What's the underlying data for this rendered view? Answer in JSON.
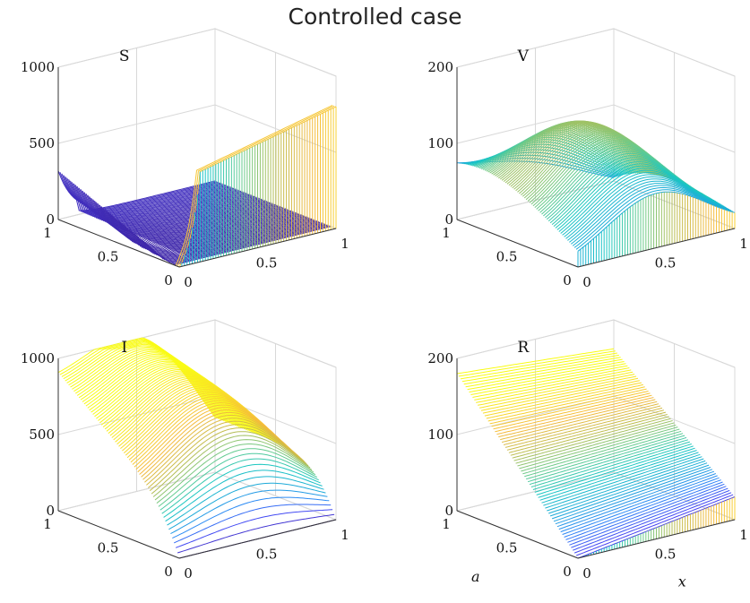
{
  "figure": {
    "title": "Controlled case"
  },
  "colormap": [
    "#3e26a8",
    "#4743f2",
    "#2e87f7",
    "#1cacd8",
    "#1ac7c2",
    "#6acb8c",
    "#c0bc4d",
    "#f5ba3c",
    "#f9dd2a",
    "#f9fb15"
  ],
  "chart_data": [
    {
      "type": "surface",
      "title": "S",
      "xlabel": "",
      "ylabel": "",
      "zlim": [
        0,
        1000
      ],
      "ztick_labels": [
        "0",
        "500",
        "1000"
      ],
      "a_tick_labels": [
        "0",
        "0.5",
        "1"
      ],
      "x_tick_labels": [
        "0",
        "0.5",
        "1"
      ],
      "boundary": {
        "a0_profile": [
          0,
          40,
          90,
          150,
          210,
          270,
          320,
          370,
          410,
          450,
          480,
          510,
          530,
          545,
          560,
          570,
          580,
          590,
          600,
          620,
          650
        ],
        "x0_profile": [
          0,
          0,
          0,
          0,
          0,
          0,
          0,
          0,
          0,
          0,
          0
        ]
      }
    },
    {
      "type": "surface",
      "title": "V",
      "xlabel": "",
      "ylabel": "",
      "zlim": [
        0,
        200
      ],
      "ztick_labels": [
        "0",
        "100",
        "200"
      ],
      "a_tick_labels": [
        "0",
        "0.5",
        "1"
      ],
      "x_tick_labels": [
        "0",
        "0.5",
        "1"
      ],
      "peak": 150
    },
    {
      "type": "surface",
      "title": "I",
      "xlabel": "",
      "ylabel": "",
      "zlim": [
        0,
        1000
      ],
      "ztick_labels": [
        "0",
        "500",
        "1000"
      ],
      "a_tick_labels": [
        "0",
        "0.5",
        "1"
      ],
      "x_tick_labels": [
        "0",
        "0.5",
        "1"
      ],
      "peak": 1000
    },
    {
      "type": "surface",
      "title": "R",
      "xlabel": "x",
      "ylabel": "a",
      "zlim": [
        0,
        200
      ],
      "ztick_labels": [
        "0",
        "100",
        "200"
      ],
      "a_tick_labels": [
        "0",
        "0.5",
        "1"
      ],
      "x_tick_labels": [
        "0",
        "0.5",
        "1"
      ],
      "peak": 210
    }
  ]
}
